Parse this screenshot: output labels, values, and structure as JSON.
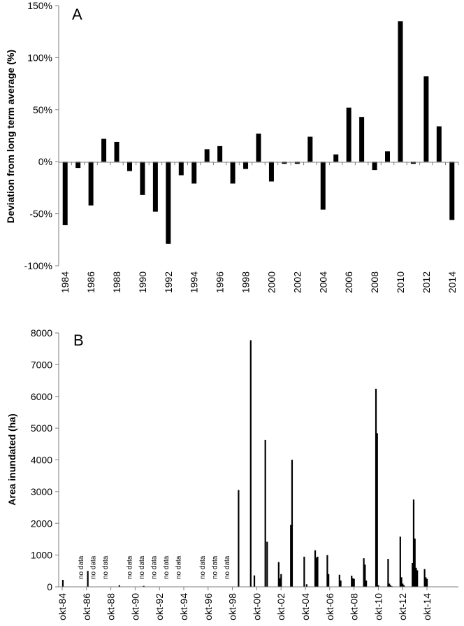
{
  "chart_data": [
    {
      "type": "bar",
      "panel_label": "A",
      "title": "",
      "xlabel": "",
      "ylabel": "Deviation from long term average (%)",
      "ylim": [
        -100,
        150
      ],
      "yticks": [
        "-100%",
        "-50%",
        "0%",
        "50%",
        "100%",
        "150%"
      ],
      "x_tick_labels": [
        "1984",
        "1986",
        "1988",
        "1990",
        "1992",
        "1994",
        "1996",
        "1998",
        "2000",
        "2002",
        "2004",
        "2006",
        "2008",
        "2010",
        "2012",
        "2014"
      ],
      "categories": [
        1984,
        1985,
        1986,
        1987,
        1988,
        1989,
        1990,
        1991,
        1992,
        1993,
        1994,
        1995,
        1996,
        1997,
        1998,
        1999,
        2000,
        2001,
        2002,
        2003,
        2004,
        2005,
        2006,
        2007,
        2008,
        2009,
        2010,
        2011,
        2012,
        2013,
        2014
      ],
      "values": [
        -61,
        -6,
        -42,
        22,
        19,
        -9,
        -32,
        -48,
        -79,
        -13,
        -21,
        12,
        15,
        -21,
        -7,
        27,
        -19,
        -2,
        -2,
        24,
        -46,
        7,
        52,
        43,
        -8,
        10,
        135,
        -2,
        82,
        34,
        -56
      ],
      "color": "#000000"
    },
    {
      "type": "bar",
      "panel_label": "B",
      "title": "",
      "xlabel": "",
      "ylabel": "Area inundated (ha)",
      "ylim": [
        0,
        8000
      ],
      "yticks": [
        "0",
        "1000",
        "2000",
        "3000",
        "4000",
        "5000",
        "6000",
        "7000",
        "8000"
      ],
      "x_tick_labels": [
        "okt-84",
        "okt-86",
        "okt-88",
        "okt-90",
        "okt-92",
        "okt-94",
        "okt-96",
        "okt-98",
        "okt-00",
        "okt-02",
        "okt-04",
        "okt-06",
        "okt-08",
        "okt-10",
        "okt-12",
        "okt-14"
      ],
      "x_unit": "years since okt-84",
      "annotation_label": "no data",
      "no_data_positions": [
        1.5,
        2.5,
        3.5,
        5.5,
        6.5,
        7.5,
        8.5,
        9.5,
        11.5,
        12.5,
        13.5
      ],
      "x": [
        0.05,
        2.1,
        4.7,
        6.7,
        14.5,
        15.5,
        15.8,
        16.7,
        16.85,
        17.8,
        17.9,
        18.0,
        18.8,
        18.9,
        19.9,
        20.1,
        20.8,
        20.9,
        21.0,
        21.8,
        21.9,
        22.8,
        22.9,
        23.8,
        23.9,
        24.0,
        24.8,
        24.9,
        25.0,
        25.8,
        25.9,
        26.0,
        26.8,
        26.9,
        27.0,
        27.1,
        27.8,
        27.9,
        28.0,
        28.1,
        28.8,
        28.9,
        29.0,
        29.1,
        29.2,
        29.8,
        29.9,
        30.0
      ],
      "values": [
        220,
        500,
        50,
        30,
        3050,
        7770,
        360,
        4630,
        1420,
        780,
        270,
        400,
        1950,
        4000,
        950,
        80,
        1150,
        920,
        950,
        1000,
        400,
        380,
        200,
        350,
        270,
        250,
        900,
        700,
        200,
        6240,
        4840,
        50,
        880,
        100,
        50,
        20,
        1580,
        300,
        100,
        50,
        750,
        2750,
        1520,
        600,
        520,
        560,
        300,
        250
      ],
      "color": "#000000"
    }
  ]
}
